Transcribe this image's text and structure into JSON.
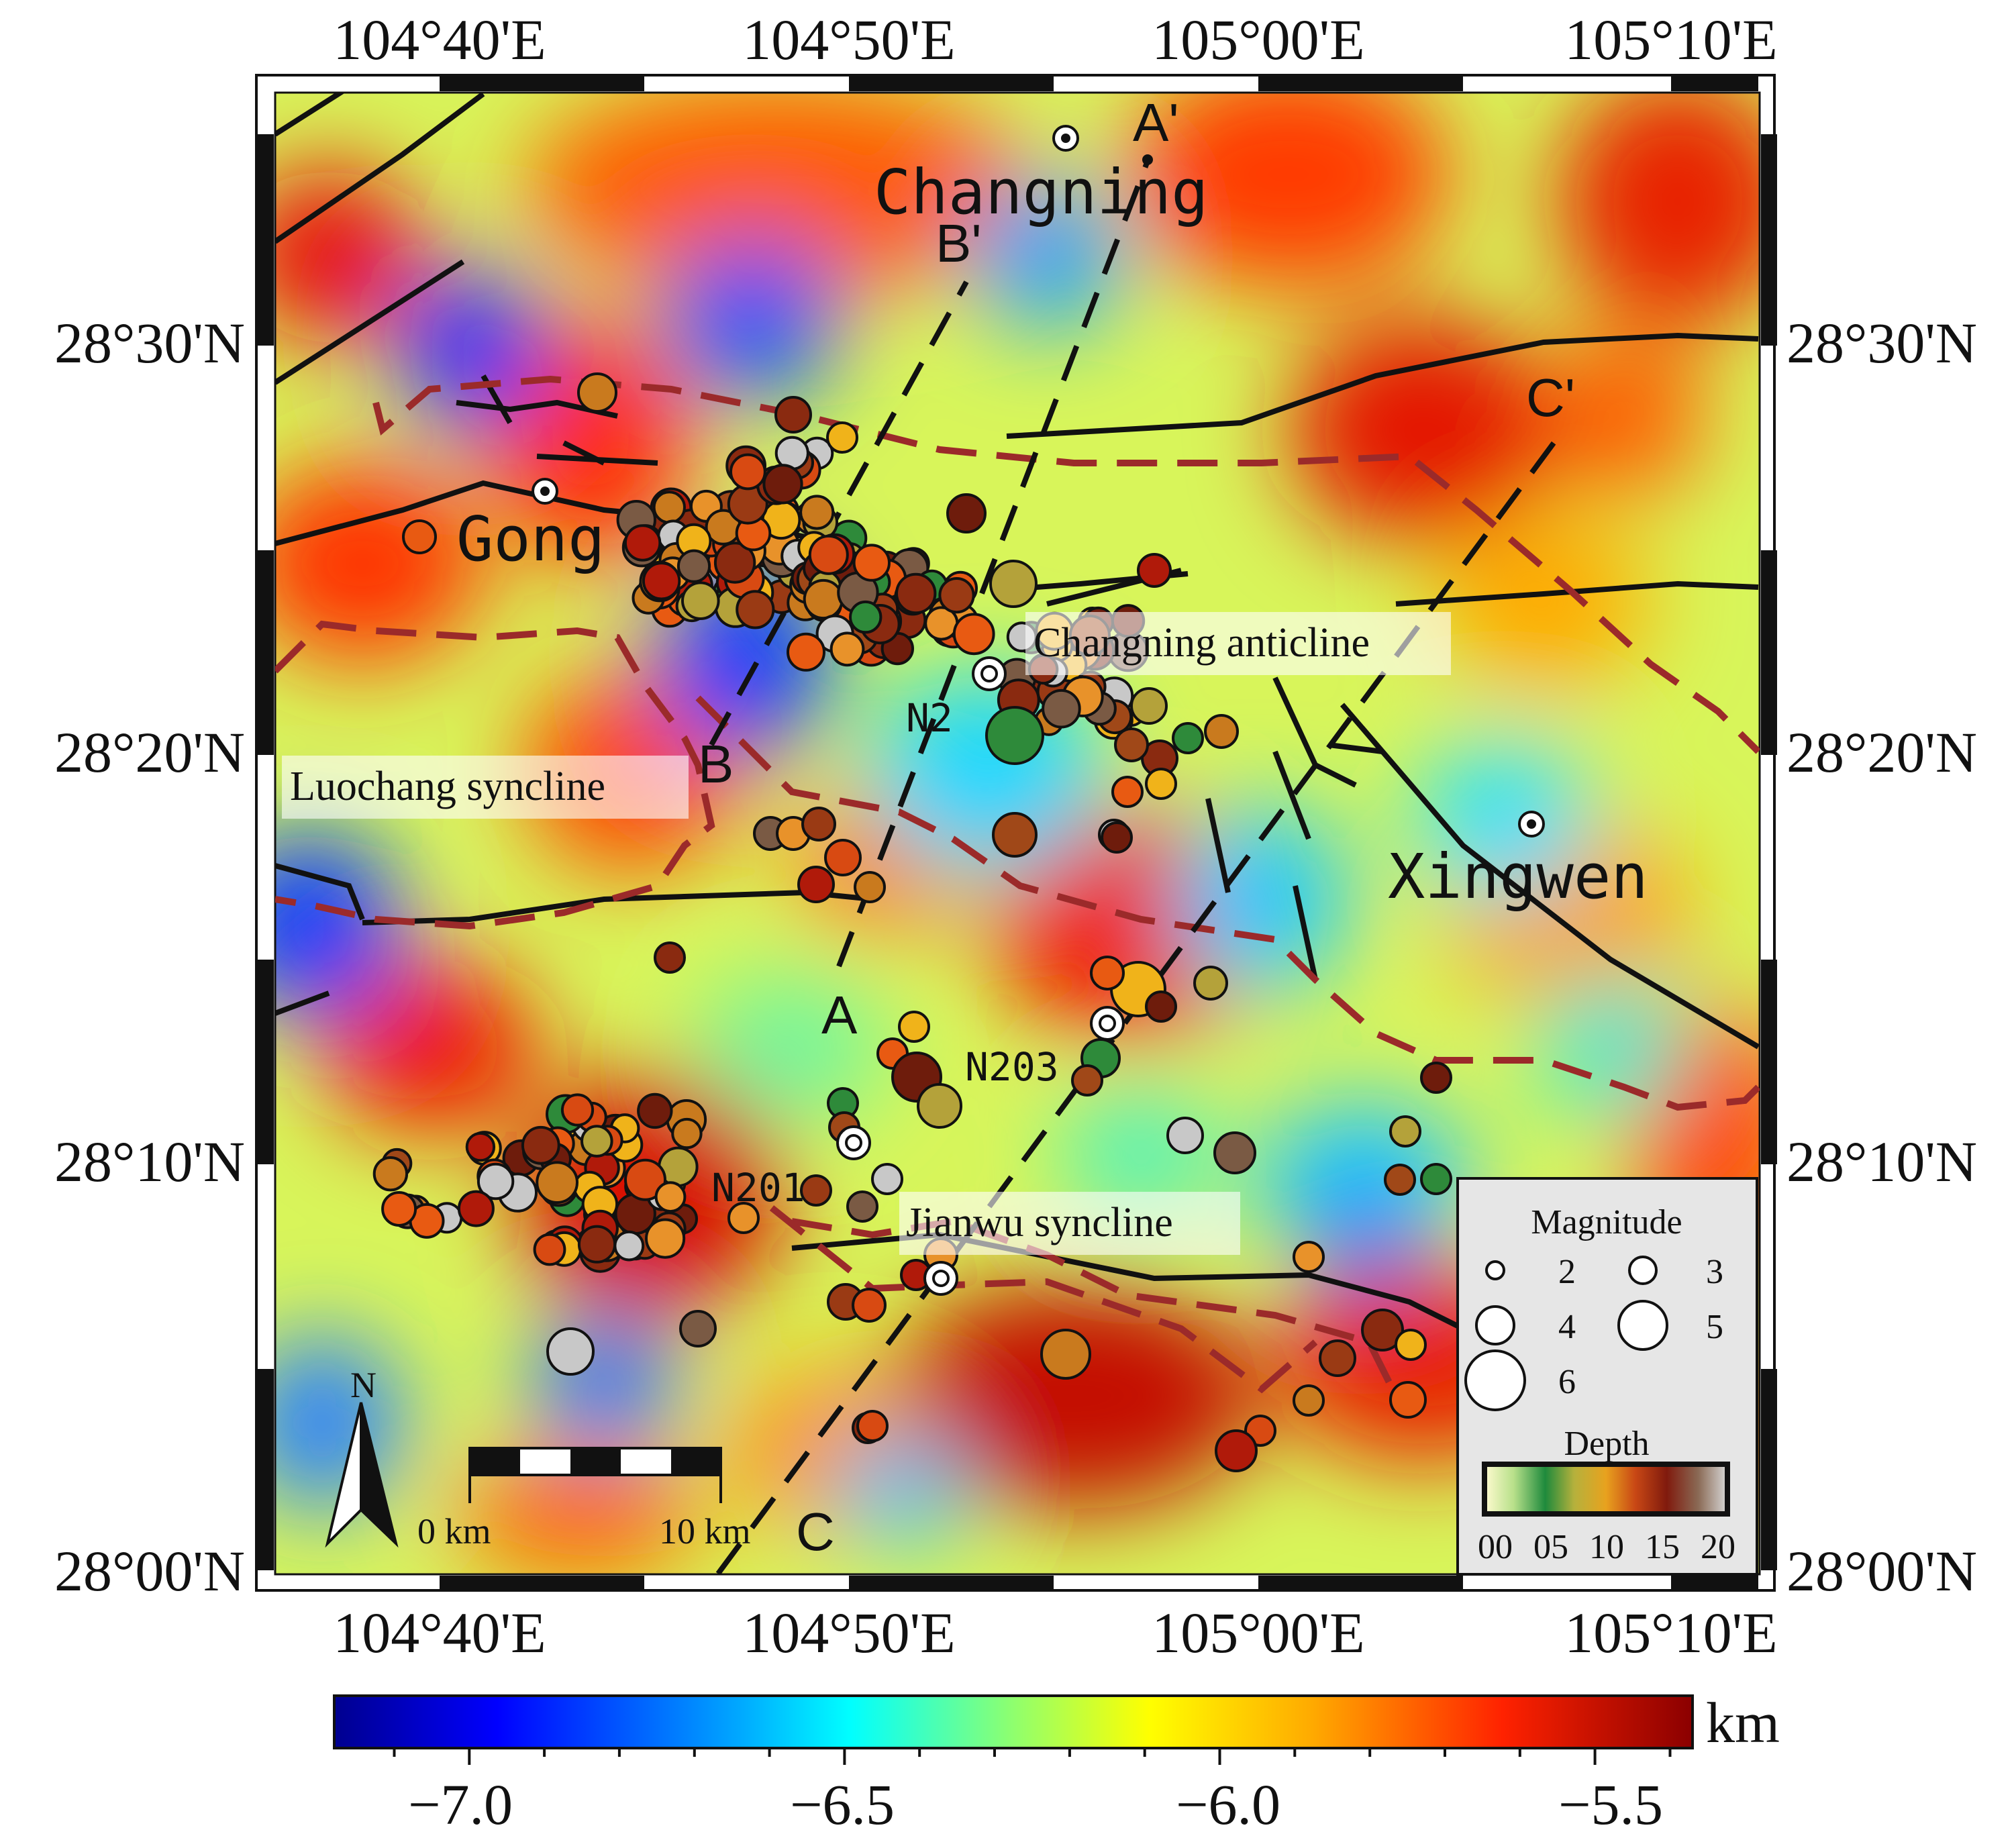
{
  "map": {
    "lon_labels": [
      "104°40'E",
      "104°50'E",
      "105°00'E",
      "105°10'E"
    ],
    "lat_labels": [
      "28°30'N",
      "28°20'N",
      "28°10'N",
      "28°00'N"
    ],
    "towns": [
      "Changning",
      "Gong",
      "Xingwen"
    ],
    "structures": [
      "Changning anticline",
      "Luochang syncline",
      "Jianwu syncline"
    ],
    "wells": [
      "N2",
      "N203",
      "N201"
    ],
    "profile_labels": {
      "a": "A",
      "a2": "A'",
      "b": "B",
      "b2": "B'",
      "c": "C",
      "c2": "C'"
    },
    "north": "N",
    "scalebar": {
      "start": "0 km",
      "end": "10 km"
    }
  },
  "legend": {
    "magnitude_title": "Magnitude",
    "magnitudes": [
      "2",
      "3",
      "4",
      "5",
      "6"
    ],
    "depth_title": "Depth",
    "depth_ticks": [
      "00",
      "05",
      "10",
      "15",
      "20"
    ]
  },
  "colorbar": {
    "unit": "km",
    "ticks": [
      "−7.0",
      "−6.5",
      "−6.0",
      "−5.5"
    ],
    "range": [
      -7.18,
      -5.37
    ]
  },
  "colors": {
    "frame": "#111111",
    "fault": "#111111",
    "fold": "#9b2a2a",
    "legend_bg": "#e6e6e6"
  }
}
